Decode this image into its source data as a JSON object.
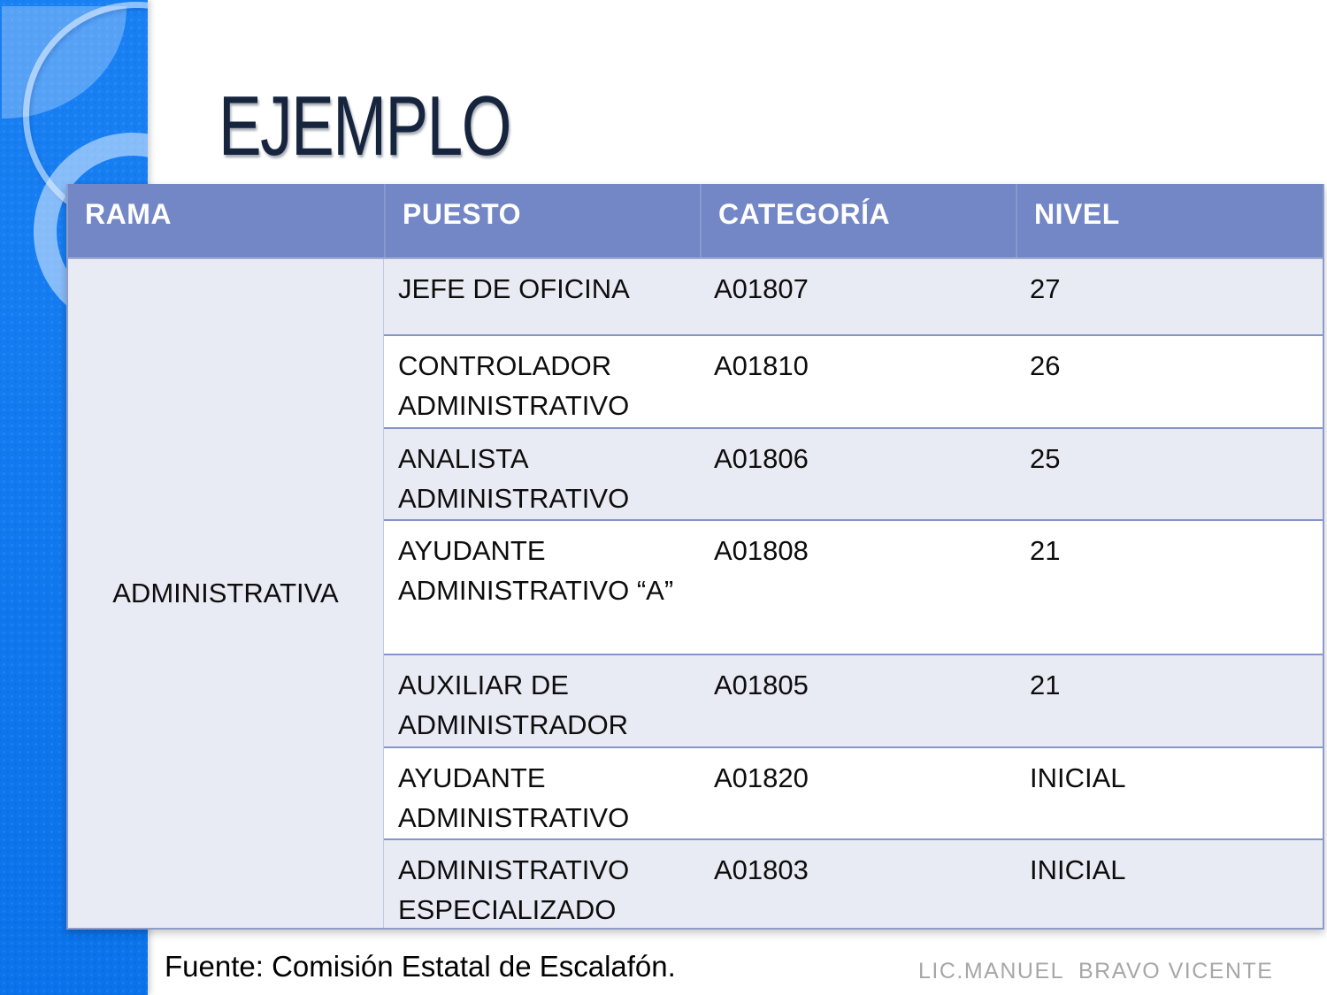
{
  "slide": {
    "title": "EJEMPLO",
    "source_note": "Fuente: Comisión Estatal de Escalafón.",
    "credit": "LIC.MANUEL  BRAVO VICENTE"
  },
  "table": {
    "headers": [
      "RAMA",
      "PUESTO",
      "CATEGORÍA",
      "NIVEL"
    ],
    "rama_group": "ADMINISTRATIVA",
    "rows": [
      {
        "puesto": "JEFE DE OFICINA",
        "categoria": "A01807",
        "nivel": "27"
      },
      {
        "puesto": "CONTROLADOR ADMINISTRATIVO",
        "categoria": "A01810",
        "nivel": "26"
      },
      {
        "puesto": "ANALISTA ADMINISTRATIVO",
        "categoria": "A01806",
        "nivel": "25"
      },
      {
        "puesto": "AYUDANTE ADMINISTRATIVO “A”",
        "categoria": "A01808",
        "nivel": "21"
      },
      {
        "puesto": "AUXILIAR DE ADMINISTRADOR",
        "categoria": "A01805",
        "nivel": "21"
      },
      {
        "puesto": "AYUDANTE ADMINISTRATIVO",
        "categoria": "A01820",
        "nivel": "INICIAL"
      },
      {
        "puesto": "ADMINISTRATIVO ESPECIALIZADO",
        "categoria": "A01803",
        "nivel": "INICIAL"
      }
    ]
  },
  "colors": {
    "header_bg": "#7386C5",
    "row_alt_bg": "#E9EBF4",
    "row_bg": "#FFFFFF",
    "grid_line": "#8496C8",
    "sidebar_blue": "#0B79F3",
    "title_navy": "#16243D",
    "credit_gray": "#A7A7A7"
  }
}
